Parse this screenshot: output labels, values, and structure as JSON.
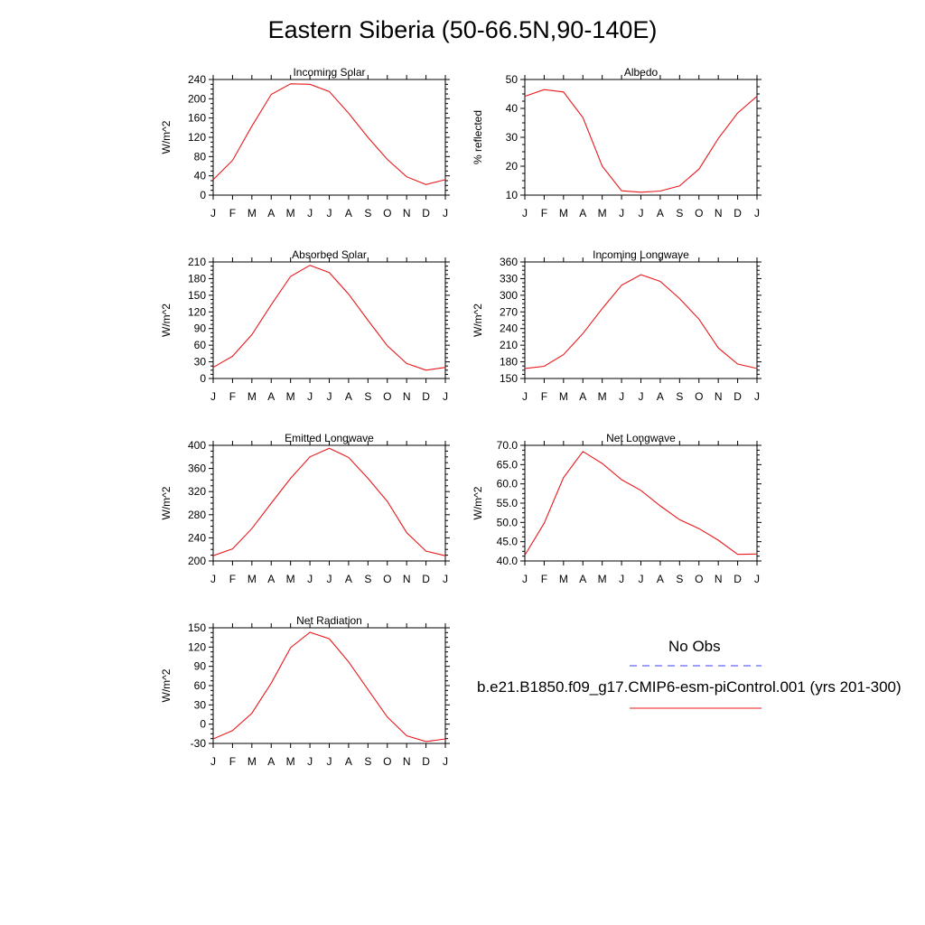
{
  "title": "Eastern Siberia (50-66.5N,90-140E)",
  "months": [
    "J",
    "F",
    "M",
    "A",
    "M",
    "J",
    "J",
    "A",
    "S",
    "O",
    "N",
    "D",
    "J"
  ],
  "colors": {
    "model": "#e8191c",
    "obs": "#3c3cff",
    "axis": "#000000"
  },
  "chart_data": [
    {
      "type": "line",
      "title": "Incoming Solar",
      "ylabel": "W/m^2",
      "ylim": [
        0,
        240
      ],
      "yticks": [
        "0",
        "40",
        "80",
        "120",
        "160",
        "200",
        "240"
      ],
      "categories": [
        "J",
        "F",
        "M",
        "A",
        "M",
        "J",
        "J",
        "A",
        "S",
        "O",
        "N",
        "D",
        "J"
      ],
      "series": [
        {
          "values": [
            32,
            72,
            143,
            209,
            231,
            230,
            215,
            170,
            120,
            74,
            38,
            22,
            32
          ]
        }
      ]
    },
    {
      "type": "line",
      "title": "Albedo",
      "ylabel": "% reflected",
      "ylim": [
        10,
        50
      ],
      "yticks": [
        "10",
        "20",
        "30",
        "40",
        "50"
      ],
      "categories": [
        "J",
        "F",
        "M",
        "A",
        "M",
        "J",
        "J",
        "A",
        "S",
        "O",
        "N",
        "D",
        "J"
      ],
      "series": [
        {
          "values": [
            44.2,
            46.5,
            45.7,
            36.8,
            20.0,
            11.5,
            11.0,
            11.4,
            13.2,
            19.0,
            29.6,
            38.4,
            44.2
          ]
        }
      ]
    },
    {
      "type": "line",
      "title": "Absorbed Solar",
      "ylabel": "W/m^2",
      "ylim": [
        0,
        210
      ],
      "yticks": [
        "0",
        "30",
        "60",
        "90",
        "120",
        "150",
        "180",
        "210"
      ],
      "categories": [
        "J",
        "F",
        "M",
        "A",
        "M",
        "J",
        "J",
        "A",
        "S",
        "O",
        "N",
        "D",
        "J"
      ],
      "series": [
        {
          "values": [
            20,
            40,
            79,
            133,
            184,
            204,
            191,
            152,
            105,
            59,
            27,
            15,
            20
          ]
        }
      ]
    },
    {
      "type": "line",
      "title": "Incoming Longwave",
      "ylabel": "W/m^2",
      "ylim": [
        150,
        360
      ],
      "yticks": [
        "150",
        "180",
        "210",
        "240",
        "270",
        "300",
        "330",
        "360"
      ],
      "categories": [
        "J",
        "F",
        "M",
        "A",
        "M",
        "J",
        "J",
        "A",
        "S",
        "O",
        "N",
        "D",
        "J"
      ],
      "series": [
        {
          "values": [
            168,
            172,
            193,
            231,
            276,
            318,
            337,
            325,
            294,
            257,
            205,
            176,
            168
          ]
        }
      ]
    },
    {
      "type": "line",
      "title": "Emitted Longwave",
      "ylabel": "W/m^2",
      "ylim": [
        200,
        400
      ],
      "yticks": [
        "200",
        "240",
        "280",
        "320",
        "360",
        "400"
      ],
      "categories": [
        "J",
        "F",
        "M",
        "A",
        "M",
        "J",
        "J",
        "A",
        "S",
        "O",
        "N",
        "D",
        "J"
      ],
      "series": [
        {
          "values": [
            209,
            221,
            256,
            300,
            343,
            380,
            395,
            379,
            343,
            303,
            249,
            217,
            209
          ]
        }
      ]
    },
    {
      "type": "line",
      "title": "Net Longwave",
      "ylabel": "W/m^2",
      "ylim": [
        40,
        70
      ],
      "yticks": [
        "40.0",
        "45.0",
        "50.0",
        "55.0",
        "60.0",
        "65.0",
        "70.0"
      ],
      "categories": [
        "J",
        "F",
        "M",
        "A",
        "M",
        "J",
        "J",
        "A",
        "S",
        "O",
        "N",
        "D",
        "J"
      ],
      "series": [
        {
          "values": [
            41.5,
            49.8,
            61.6,
            68.4,
            65.3,
            61.1,
            58.3,
            54.3,
            50.7,
            48.4,
            45.4,
            41.7,
            41.8
          ]
        }
      ]
    },
    {
      "type": "line",
      "title": "Net Radiation",
      "ylabel": "W/m^2",
      "ylim": [
        -30,
        150
      ],
      "yticks": [
        "-30",
        "0",
        "30",
        "60",
        "90",
        "120",
        "150"
      ],
      "categories": [
        "J",
        "F",
        "M",
        "A",
        "M",
        "J",
        "J",
        "A",
        "S",
        "O",
        "N",
        "D",
        "J"
      ],
      "series": [
        {
          "values": [
            -23,
            -10,
            17,
            64,
            119,
            143,
            133,
            97,
            54,
            11,
            -18,
            -27,
            -23
          ]
        }
      ]
    }
  ],
  "legend": {
    "obs_label": "No Obs",
    "model_label": "b.e21.B1850.f09_g17.CMIP6-esm-piControl.001 (yrs 201-300)"
  }
}
